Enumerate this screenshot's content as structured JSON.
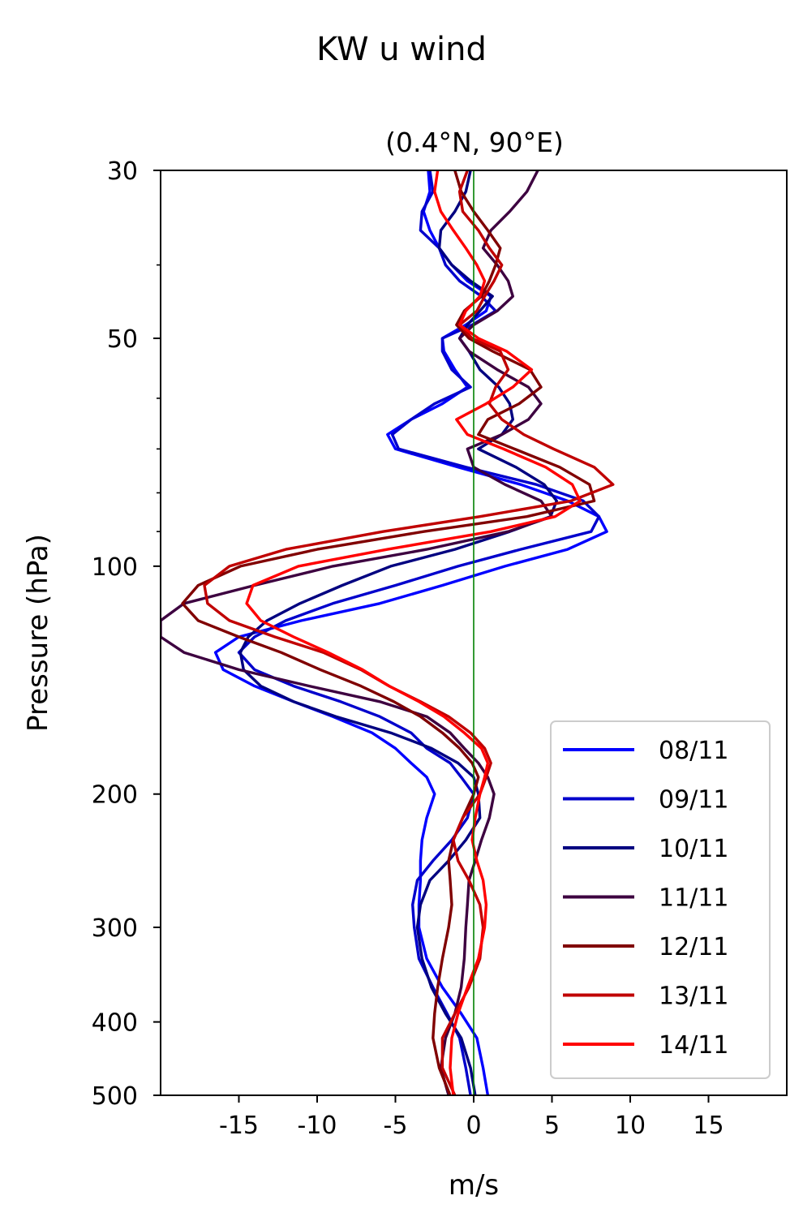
{
  "chart_data": {
    "type": "line",
    "title": "KW u wind",
    "subtitle": "(0.4°N, 90°E)",
    "xlabel": "m/s",
    "ylabel": "Pressure (hPa)",
    "xlim": [
      -20,
      20
    ],
    "ylim": [
      500,
      30
    ],
    "yscale": "log",
    "x_ticks": [
      -15,
      -10,
      -5,
      0,
      5,
      10,
      15
    ],
    "x_tick_labels": [
      "-15",
      "-10",
      "-5",
      "0",
      "5",
      "10",
      "15"
    ],
    "y_ticks": [
      30,
      50,
      100,
      200,
      300,
      400,
      500
    ],
    "y_tick_labels": [
      "30",
      "50",
      "100",
      "200",
      "300",
      "400",
      "500"
    ],
    "y_minor_ticks": [
      40,
      60,
      70,
      80,
      90
    ],
    "reference_line": {
      "x": 0,
      "color": "#008000"
    },
    "legend_position": "lower-right",
    "grid": false,
    "pressure_levels": [
      30,
      32,
      34,
      36,
      38,
      40,
      42,
      44,
      46,
      48,
      50,
      52,
      55,
      58,
      61,
      64,
      67,
      70,
      74,
      78,
      82,
      86,
      90,
      95,
      100,
      106,
      112,
      118,
      124,
      130,
      137,
      144,
      151,
      158,
      166,
      174,
      182,
      190,
      200,
      215,
      230,
      245,
      260,
      280,
      300,
      330,
      360,
      390,
      420,
      460,
      500
    ],
    "series": [
      {
        "name": "08/11",
        "color": "#0000ff",
        "values": [
          -2.9,
          -2.8,
          -3.2,
          -2.8,
          -2.2,
          -1.4,
          -0.4,
          1.1,
          0.8,
          -0.5,
          -2.0,
          -1.9,
          -1.2,
          -0.4,
          -2,
          -4,
          -5.5,
          -5,
          -1,
          3,
          6,
          8,
          8.5,
          6,
          2,
          -2,
          -6,
          -11,
          -15,
          -16.5,
          -16,
          -14,
          -11.5,
          -9,
          -6.5,
          -5,
          -4,
          -3,
          -2.5,
          -3,
          -3.3,
          -3.4,
          -3.4,
          -3.5,
          -3.5,
          -3,
          -2,
          -0.8,
          0.2,
          0.6,
          0.9
        ]
      },
      {
        "name": "09/11",
        "color": "#0000cc",
        "values": [
          -2.8,
          -2.6,
          -3.3,
          -3.4,
          -2.2,
          -1.8,
          -0.9,
          0.5,
          1.4,
          -0.1,
          -2.0,
          -2.0,
          -1.4,
          -0.2,
          -2.5,
          -4,
          -5.2,
          -4.8,
          -0.5,
          4,
          7,
          8,
          7.5,
          3,
          -1,
          -5,
          -9,
          -12,
          -14,
          -15,
          -14,
          -11.5,
          -8.5,
          -6,
          -4,
          -3,
          -1.5,
          -0.8,
          0,
          -0.4,
          -1.4,
          -2.6,
          -3.6,
          -3.9,
          -3.8,
          -3.5,
          -2.6,
          -1.7,
          -0.9,
          -0.5,
          -0.2
        ]
      },
      {
        "name": "10/11",
        "color": "#000080",
        "values": [
          -0.2,
          -0.5,
          -1.2,
          -2.1,
          -2.2,
          -1.4,
          -0.2,
          1.2,
          0.4,
          -0.4,
          -0.9,
          -0.3,
          0.4,
          1.6,
          2.3,
          2.5,
          1.8,
          0.3,
          2.7,
          4.5,
          5.3,
          4.9,
          2.3,
          -1.2,
          -5.3,
          -8.4,
          -11.1,
          -13.2,
          -14.4,
          -14.9,
          -14.7,
          -13.6,
          -11.5,
          -8.8,
          -5.3,
          -2.7,
          -1.0,
          0.0,
          0.3,
          0.4,
          -0.5,
          -1.6,
          -2.8,
          -3.4,
          -3.6,
          -3.3,
          -2.7,
          -1.8,
          -0.8,
          -0.2,
          0.1
        ]
      },
      {
        "name": "11/11",
        "color": "#3d0040",
        "values": [
          4.1,
          3.4,
          2.3,
          1.1,
          0.6,
          1.5,
          2.2,
          2.5,
          1.5,
          0.0,
          -0.9,
          -0.3,
          1.5,
          3.5,
          4.3,
          3.5,
          1.8,
          -0.4,
          0.0,
          2.0,
          4.3,
          5.0,
          2.2,
          -3,
          -9,
          -14,
          -18.5,
          -20,
          -20,
          -18.5,
          -15,
          -10.5,
          -6,
          -3,
          -1.5,
          -0.6,
          0.3,
          0.9,
          1.3,
          1.0,
          0.5,
          0.1,
          -0.3,
          -0.4,
          -0.5,
          -0.6,
          -0.8,
          -1.2,
          -1.8,
          -2.1,
          -1.6
        ]
      },
      {
        "name": "12/11",
        "color": "#800000",
        "values": [
          -1.2,
          -0.8,
          0.0,
          0.9,
          1.7,
          1.4,
          1.0,
          0.5,
          -0.6,
          -1.1,
          -0.3,
          1.2,
          3.6,
          4.3,
          2.9,
          0.9,
          0.3,
          2.6,
          5.5,
          7.4,
          7.7,
          3.4,
          -3.2,
          -10,
          -14.9,
          -17.6,
          -18.6,
          -17.6,
          -15.0,
          -12.3,
          -9.8,
          -7.2,
          -5.1,
          -3.4,
          -2.0,
          -0.9,
          -0.1,
          0.3,
          0.0,
          -0.7,
          -1.3,
          -1.6,
          -1.5,
          -1.4,
          -1.6,
          -2.0,
          -2.3,
          -2.5,
          -2.6,
          -2.2,
          -1.5
        ]
      },
      {
        "name": "13/11",
        "color": "#c00000",
        "values": [
          -0.4,
          -0.9,
          -0.7,
          0.3,
          1.0,
          1.8,
          1.3,
          0.7,
          0.2,
          -0.9,
          -0.1,
          1.7,
          2.2,
          1.4,
          1.0,
          1.8,
          3.2,
          5.1,
          7.7,
          8.9,
          6.2,
          0.4,
          -5.8,
          -12,
          -15.6,
          -17.2,
          -17.0,
          -15.6,
          -12.7,
          -9.6,
          -7.2,
          -5.4,
          -3.4,
          -1.6,
          -0.2,
          0.7,
          1.1,
          0.8,
          0.4,
          -0.7,
          -1.3,
          -1.0,
          -0.3,
          0.4,
          0.6,
          0.4,
          -0.3,
          -1.2,
          -2.0,
          -2.0,
          -1.2
        ]
      },
      {
        "name": "14/11",
        "color": "#ff0000",
        "values": [
          -2.3,
          -2.5,
          -2.1,
          -1.3,
          -0.5,
          0.2,
          0.7,
          0.4,
          -0.5,
          -0.9,
          0.3,
          2.1,
          3.7,
          2.5,
          0.8,
          -1.1,
          -0.4,
          1.9,
          4.6,
          6.3,
          6.8,
          5.2,
          1.1,
          -5.5,
          -11.2,
          -14.1,
          -14.5,
          -13.6,
          -11.5,
          -9.3,
          -7.1,
          -5.4,
          -3.5,
          -1.9,
          -0.6,
          0.5,
          0.9,
          0.7,
          0.4,
          0.1,
          -0.1,
          0.2,
          0.6,
          0.8,
          0.7,
          0.3,
          -0.4,
          -1.0,
          -1.4,
          -1.5,
          -1.3
        ]
      }
    ]
  }
}
